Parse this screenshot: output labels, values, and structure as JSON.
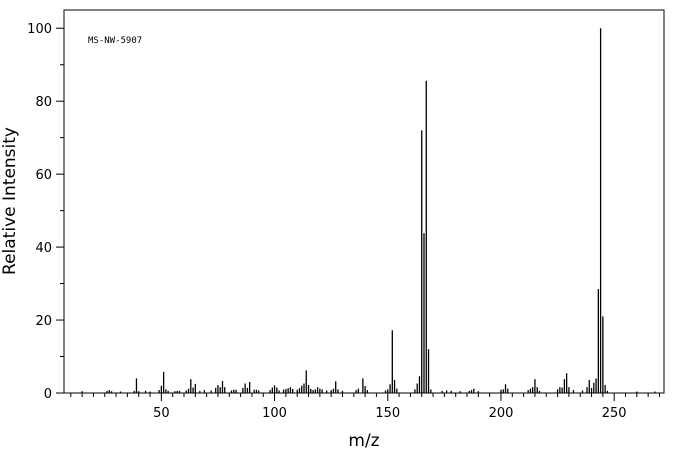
{
  "chart_data": {
    "type": "bar",
    "title": "",
    "annotation": "MS-NW-5907",
    "xlabel": "m/z",
    "ylabel": "Relative Intensity",
    "xlim": [
      7,
      272
    ],
    "ylim": [
      0,
      105
    ],
    "x_ticks": [
      50,
      100,
      150,
      200,
      250
    ],
    "y_ticks": [
      0,
      20,
      40,
      60,
      80,
      100
    ],
    "grid": false,
    "peaks": [
      [
        15,
        0.5
      ],
      [
        26,
        0.6
      ],
      [
        27,
        0.8
      ],
      [
        28,
        0.5
      ],
      [
        32,
        0.4
      ],
      [
        38,
        0.6
      ],
      [
        39,
        4.0
      ],
      [
        40,
        0.5
      ],
      [
        43,
        0.6
      ],
      [
        45,
        0.4
      ],
      [
        49,
        0.8
      ],
      [
        50,
        2.0
      ],
      [
        51,
        5.8
      ],
      [
        52,
        1.0
      ],
      [
        53,
        0.6
      ],
      [
        56,
        0.5
      ],
      [
        57,
        0.6
      ],
      [
        58,
        0.6
      ],
      [
        61,
        0.7
      ],
      [
        62,
        1.2
      ],
      [
        63,
        3.8
      ],
      [
        64,
        1.5
      ],
      [
        65,
        2.5
      ],
      [
        67,
        0.6
      ],
      [
        69,
        0.8
      ],
      [
        72,
        0.7
      ],
      [
        74,
        1.4
      ],
      [
        75,
        2.2
      ],
      [
        76,
        1.6
      ],
      [
        77,
        3.3
      ],
      [
        78,
        1.6
      ],
      [
        81,
        0.7
      ],
      [
        82,
        0.9
      ],
      [
        83,
        0.9
      ],
      [
        86,
        1.4
      ],
      [
        87,
        2.6
      ],
      [
        88,
        1.4
      ],
      [
        89,
        3.0
      ],
      [
        91,
        0.9
      ],
      [
        92,
        0.9
      ],
      [
        93,
        0.7
      ],
      [
        98,
        0.8
      ],
      [
        99,
        1.5
      ],
      [
        100,
        2.1
      ],
      [
        101,
        1.5
      ],
      [
        102,
        0.7
      ],
      [
        104,
        0.9
      ],
      [
        105,
        1.1
      ],
      [
        106,
        1.3
      ],
      [
        107,
        1.6
      ],
      [
        108,
        1.1
      ],
      [
        110,
        0.9
      ],
      [
        111,
        1.3
      ],
      [
        112,
        2.0
      ],
      [
        113,
        2.6
      ],
      [
        114,
        6.2
      ],
      [
        115,
        2.2
      ],
      [
        116,
        1.1
      ],
      [
        117,
        0.8
      ],
      [
        118,
        1.0
      ],
      [
        119,
        1.6
      ],
      [
        120,
        1.2
      ],
      [
        121,
        1.0
      ],
      [
        123,
        0.7
      ],
      [
        125,
        0.8
      ],
      [
        126,
        1.2
      ],
      [
        127,
        3.2
      ],
      [
        128,
        1.0
      ],
      [
        130,
        0.6
      ],
      [
        136,
        0.8
      ],
      [
        137,
        1.2
      ],
      [
        139,
        4.0
      ],
      [
        140,
        1.9
      ],
      [
        141,
        0.8
      ],
      [
        149,
        0.7
      ],
      [
        150,
        1.0
      ],
      [
        151,
        2.4
      ],
      [
        152,
        17.2
      ],
      [
        153,
        3.6
      ],
      [
        154,
        1.2
      ],
      [
        162,
        1.0
      ],
      [
        163,
        2.6
      ],
      [
        164,
        4.6
      ],
      [
        165,
        72.0
      ],
      [
        166,
        43.8
      ],
      [
        167,
        85.6
      ],
      [
        168,
        12.0
      ],
      [
        169,
        1.0
      ],
      [
        174,
        0.6
      ],
      [
        176,
        0.7
      ],
      [
        178,
        0.6
      ],
      [
        182,
        0.5
      ],
      [
        186,
        0.6
      ],
      [
        187,
        0.8
      ],
      [
        188,
        1.2
      ],
      [
        190,
        0.5
      ],
      [
        200,
        0.9
      ],
      [
        201,
        1.0
      ],
      [
        202,
        2.4
      ],
      [
        203,
        1.2
      ],
      [
        212,
        0.8
      ],
      [
        213,
        1.2
      ],
      [
        214,
        1.6
      ],
      [
        215,
        3.8
      ],
      [
        216,
        1.6
      ],
      [
        217,
        0.6
      ],
      [
        225,
        1.0
      ],
      [
        226,
        1.6
      ],
      [
        227,
        1.5
      ],
      [
        228,
        3.8
      ],
      [
        229,
        5.4
      ],
      [
        230,
        1.6
      ],
      [
        232,
        0.8
      ],
      [
        236,
        0.7
      ],
      [
        238,
        1.6
      ],
      [
        239,
        3.6
      ],
      [
        240,
        1.4
      ],
      [
        241,
        2.8
      ],
      [
        242,
        4.0
      ],
      [
        243,
        28.5
      ],
      [
        244,
        100.0
      ],
      [
        245,
        21.0
      ],
      [
        246,
        2.2
      ],
      [
        247,
        0.6
      ],
      [
        260,
        0.4
      ],
      [
        268,
        0.4
      ]
    ]
  }
}
